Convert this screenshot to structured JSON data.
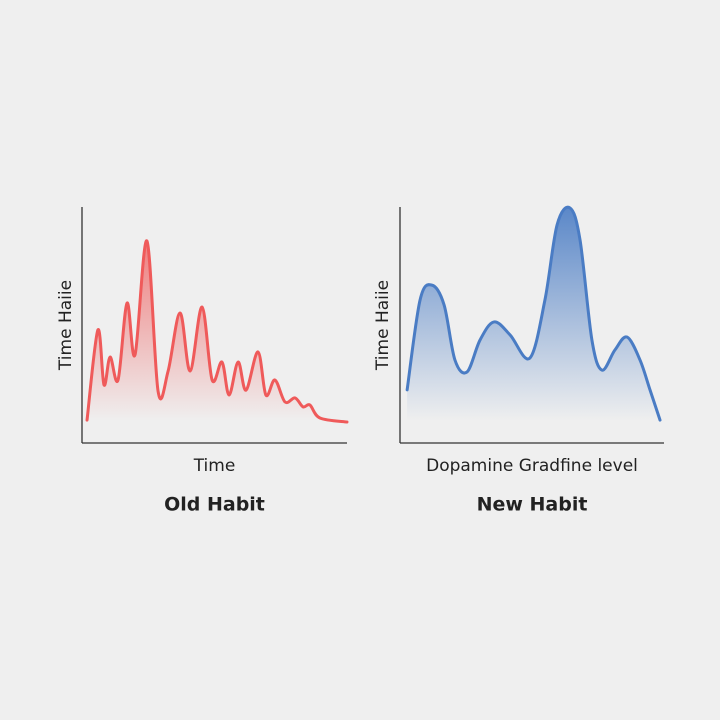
{
  "chart_data": [
    {
      "type": "line",
      "title": "Old Habit",
      "x_label": "Time",
      "y_label": "Time Haiie",
      "color": "#ef5a5a",
      "xlim": [
        0,
        100
      ],
      "ylim": [
        0,
        100
      ],
      "x": [
        1.9,
        6.0,
        8.3,
        10.6,
        13.6,
        17.0,
        20.0,
        24.5,
        28.7,
        32.5,
        37.0,
        40.8,
        45.3,
        49.1,
        52.8,
        55.5,
        58.9,
        61.9,
        66.4,
        69.4,
        72.8,
        76.6,
        80.4,
        83.4,
        86.0,
        89.8,
        100
      ],
      "values": [
        9.7,
        47.9,
        24.6,
        36.4,
        26.7,
        59.3,
        37.3,
        85.6,
        22.0,
        30.5,
        55.1,
        30.5,
        57.6,
        26.7,
        34.3,
        20.3,
        34.3,
        22.4,
        38.6,
        20.3,
        26.7,
        17.4,
        19.1,
        15.3,
        16.1,
        10.6,
        8.9
      ]
    },
    {
      "type": "line",
      "title": "New Habit",
      "x_label": "Dopamine Gradfine level",
      "y_label": "Time Haiie",
      "color": "#4a7cc4",
      "xlim": [
        0,
        100
      ],
      "ylim": [
        0,
        100
      ],
      "x": [
        2.7,
        7.6,
        12.1,
        16.7,
        20.8,
        25.4,
        30.3,
        35.6,
        41.7,
        49.2,
        54.9,
        59.5,
        64.4,
        68.2,
        72.7,
        76.5,
        81.4,
        86.0,
        90.9,
        94.7,
        98.5
      ],
      "values": [
        22.5,
        60.6,
        66.9,
        58.5,
        35.2,
        30.1,
        43.6,
        51.3,
        45.8,
        36.0,
        60.6,
        92.4,
        99.6,
        86.0,
        43.6,
        30.9,
        39.4,
        44.9,
        35.2,
        22.5,
        9.7
      ]
    }
  ]
}
